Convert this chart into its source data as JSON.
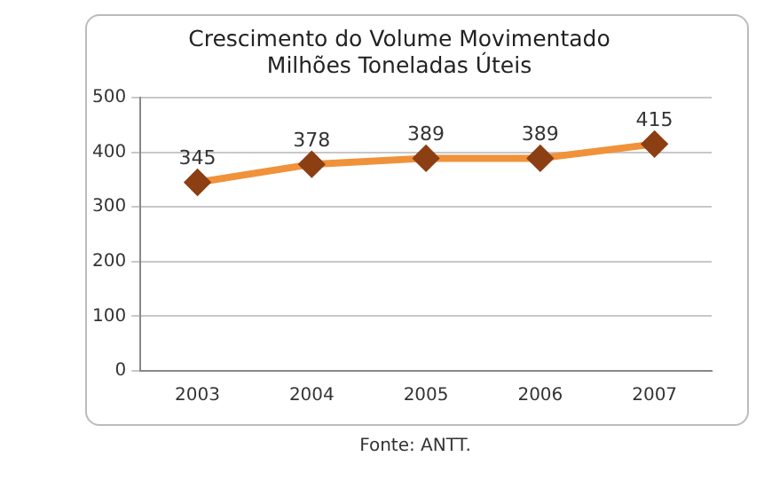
{
  "chart_data": {
    "type": "line",
    "title": "Crescimento do Volume Movimentado\nMilhões Toneladas Úteis",
    "categories": [
      "2003",
      "2004",
      "2005",
      "2006",
      "2007"
    ],
    "series": [
      {
        "color": "#f0923a",
        "values": [
          345,
          378,
          389,
          389,
          415
        ]
      }
    ],
    "ylim": [
      0,
      500
    ],
    "yticks": [
      0,
      100,
      200,
      300,
      400,
      500
    ],
    "grid": "y",
    "legend": false,
    "marker": "diamond",
    "line_style": "solid",
    "data_labels": true,
    "annotations": [
      "Fonte: ANTT."
    ]
  }
}
